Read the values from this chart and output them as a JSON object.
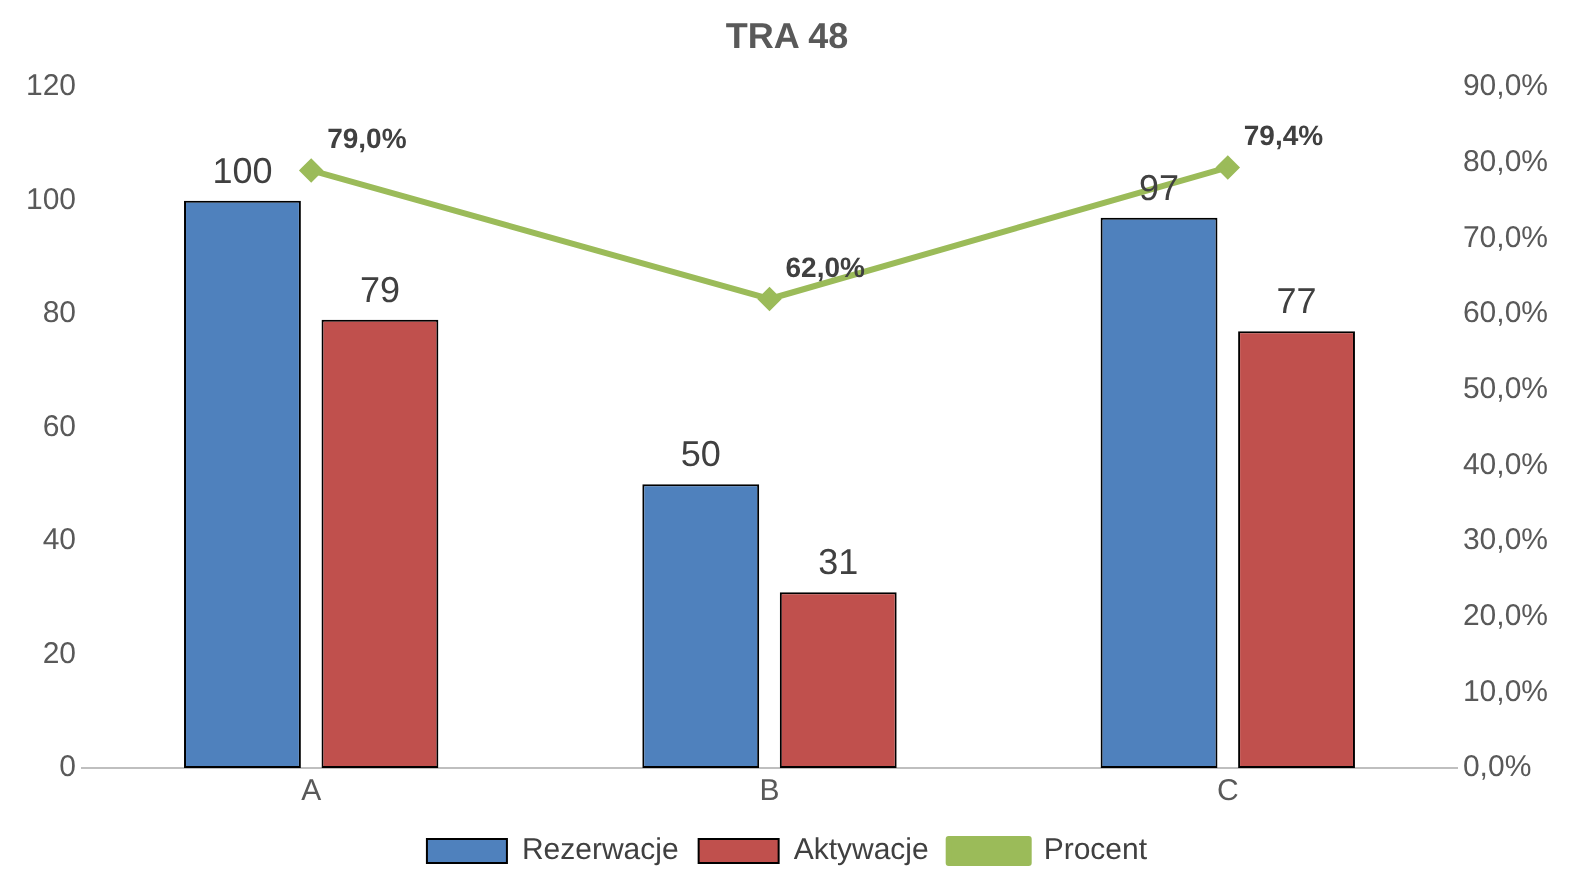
{
  "chart_data": {
    "type": "bar",
    "title": "TRA 48",
    "categories": [
      "A",
      "B",
      "C"
    ],
    "series": [
      {
        "name": "Rezerwacje",
        "color": "#4f81bd",
        "values": [
          100,
          50,
          97
        ],
        "value_labels": [
          "100",
          "50",
          "97"
        ]
      },
      {
        "name": "Aktywacje",
        "color": "#c0504d",
        "values": [
          79,
          31,
          77
        ],
        "value_labels": [
          "79",
          "31",
          "77"
        ]
      },
      {
        "name": "Procent",
        "type": "line",
        "axis": "y2",
        "color": "#9bbb59",
        "values": [
          79.0,
          62.0,
          79.4
        ],
        "value_labels": [
          "79,0%",
          "62,0%",
          "79,4%"
        ]
      }
    ],
    "ylim": [
      0,
      120
    ],
    "yticks": [
      0,
      20,
      40,
      60,
      80,
      100,
      120
    ],
    "y2lim": [
      0,
      90
    ],
    "y2ticks": [
      {
        "value": 0,
        "label": "0,0%"
      },
      {
        "value": 10,
        "label": "10,0%"
      },
      {
        "value": 20,
        "label": "20,0%"
      },
      {
        "value": 30,
        "label": "30,0%"
      },
      {
        "value": 40,
        "label": "40,0%"
      },
      {
        "value": 50,
        "label": "50,0%"
      },
      {
        "value": 60,
        "label": "60,0%"
      },
      {
        "value": 70,
        "label": "70,0%"
      },
      {
        "value": 80,
        "label": "80,0%"
      },
      {
        "value": 90,
        "label": "90,0%"
      }
    ],
    "grid": false,
    "legend": "bottom",
    "marker": "diamond",
    "line_style": "solid"
  }
}
